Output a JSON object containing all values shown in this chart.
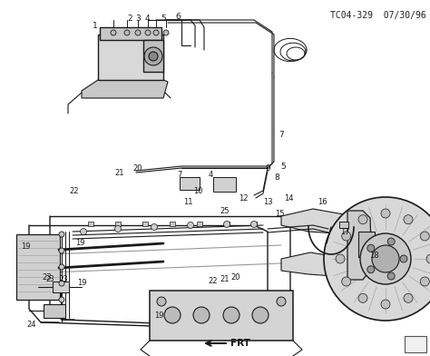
{
  "diagram_code": "TC04-329",
  "diagram_date": "07/30/96",
  "frt_label": "FRT",
  "bg": "#ffffff",
  "lc": "#1a1a1a",
  "fig_width": 4.74,
  "fig_height": 3.92,
  "dpi": 100
}
